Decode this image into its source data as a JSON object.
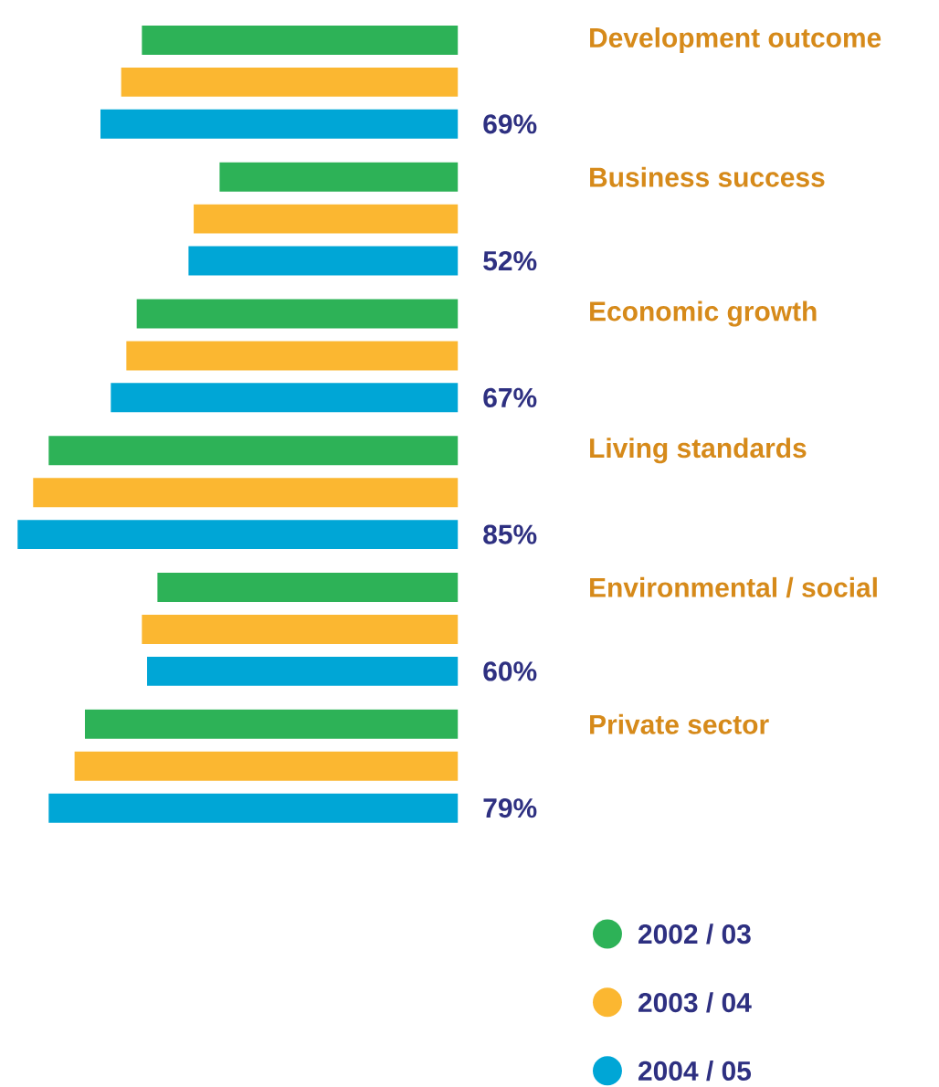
{
  "chart_data": {
    "type": "bar",
    "orientation": "horizontal",
    "categories": [
      "Development outcome",
      "Business success",
      "Economic growth",
      "Living standards",
      "Environmental / social",
      "Private sector"
    ],
    "series": [
      {
        "name": "2002 / 03",
        "color": "#2db257",
        "values": [
          61,
          46,
          62,
          79,
          58,
          72
        ]
      },
      {
        "name": "2003 / 04",
        "color": "#fbb731",
        "values": [
          65,
          51,
          64,
          82,
          61,
          74
        ]
      },
      {
        "name": "2004 / 05",
        "color": "#00a6d6",
        "values": [
          69,
          52,
          67,
          85,
          60,
          79
        ],
        "value_labels": [
          "69%",
          "52%",
          "67%",
          "85%",
          "60%",
          "79%"
        ]
      }
    ],
    "legend": "bottom"
  }
}
